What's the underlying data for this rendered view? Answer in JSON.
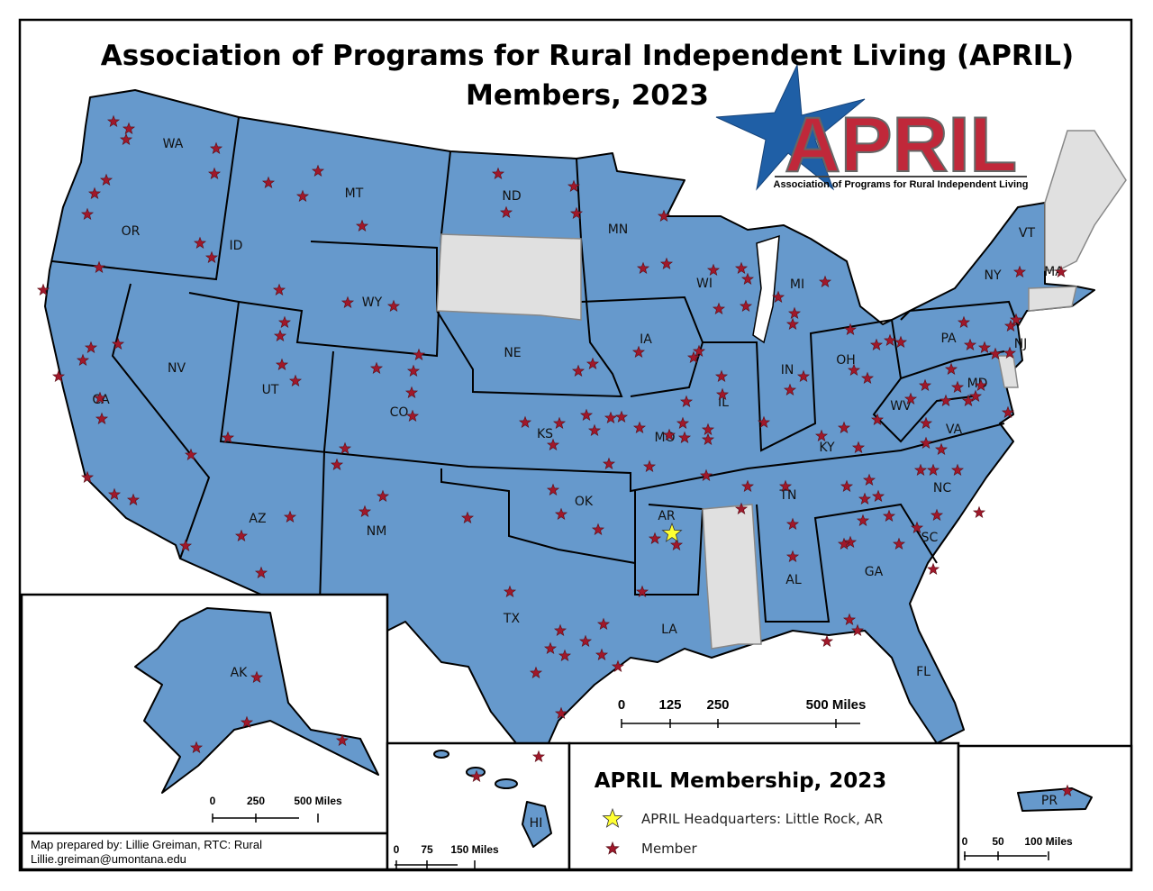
{
  "title": [
    "Association of Programs for Rural Independent Living (APRIL)",
    "Members, 2023"
  ],
  "logo": {
    "name": "APRIL",
    "subtitle": "Association of Programs for Rural Independent Living"
  },
  "states": [
    "WA",
    "OR",
    "CA",
    "NV",
    "ID",
    "MT",
    "WY",
    "UT",
    "CO",
    "AZ",
    "NM",
    "ND",
    "NE",
    "KS",
    "OK",
    "TX",
    "MN",
    "IA",
    "MO",
    "AR",
    "LA",
    "WI",
    "IL",
    "MI",
    "IN",
    "OH",
    "KY",
    "TN",
    "AL",
    "GA",
    "FL",
    "SC",
    "NC",
    "VA",
    "WV",
    "PA",
    "NY",
    "VT",
    "MA",
    "NJ",
    "MD",
    "AK",
    "HI",
    "PR"
  ],
  "scale_main": [
    "0",
    "125",
    "250",
    "500 Miles"
  ],
  "scale_ak": [
    "0",
    "250",
    "500 Miles"
  ],
  "scale_hi": [
    "0",
    "75",
    "150 Miles"
  ],
  "scale_pr": [
    "0",
    "50",
    "100 Miles"
  ],
  "legend": {
    "title": "APRIL Membership, 2023",
    "items": [
      "APRIL Headquarters: Little Rock, AR",
      "Member"
    ]
  },
  "credit": [
    "Map prepared by: Lillie Greiman, RTC: Rural",
    "Lillie.greiman@umontana.edu"
  ]
}
